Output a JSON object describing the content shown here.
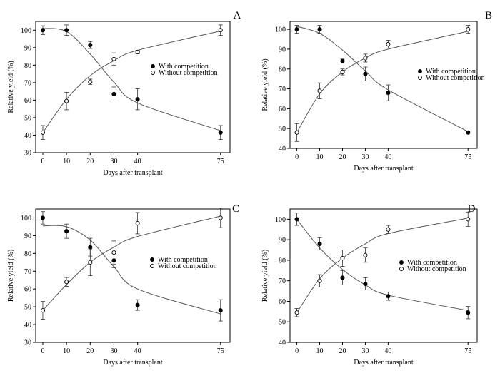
{
  "chart_data": [
    {
      "panel": "A",
      "type": "scatter",
      "xlabel": "Days after transplant",
      "ylabel": "Relative yield (%)",
      "xticks": [
        0,
        10,
        20,
        30,
        40,
        75
      ],
      "yticks": [
        30,
        40,
        50,
        60,
        70,
        80,
        90,
        100
      ],
      "xlim": [
        -3,
        79
      ],
      "ylim": [
        30,
        105
      ],
      "legend_position": "right",
      "series": [
        {
          "name": "With competition",
          "marker": "filled",
          "x": [
            0,
            10,
            20,
            30,
            40,
            75
          ],
          "y": [
            100,
            100,
            91.5,
            63.5,
            60.5,
            41.5
          ],
          "err": [
            2.5,
            3,
            2,
            4,
            6,
            4
          ],
          "fit_y": [
            101,
            99.2,
            86.3,
            70.3,
            58.4,
            42.6
          ]
        },
        {
          "name": "Without competition",
          "marker": "open",
          "x": [
            0,
            10,
            20,
            30,
            40,
            75
          ],
          "y": [
            41.5,
            59.5,
            70.5,
            83.5,
            87.5,
            100
          ],
          "err": [
            4,
            5,
            1.5,
            3.5,
            1,
            3
          ],
          "fit_y": [
            41.5,
            60.5,
            74,
            82.5,
            88.5,
            99.5
          ]
        }
      ]
    },
    {
      "panel": "B",
      "type": "scatter",
      "xlabel": "Days after transplant",
      "ylabel": "Relative yield (%)",
      "xticks": [
        0,
        10,
        20,
        30,
        40,
        75
      ],
      "yticks": [
        40,
        50,
        60,
        70,
        80,
        90,
        100
      ],
      "xlim": [
        -3,
        79
      ],
      "ylim": [
        40,
        104
      ],
      "legend_position": "right",
      "series": [
        {
          "name": "With competition",
          "marker": "filled",
          "x": [
            0,
            10,
            20,
            30,
            40,
            75
          ],
          "y": [
            100,
            100,
            84,
            77.5,
            68,
            48
          ],
          "err": [
            2,
            2,
            1,
            3.5,
            4,
            0.5
          ],
          "fit_y": [
            101.5,
            98,
            89.5,
            79,
            69.5,
            48.5
          ]
        },
        {
          "name": "Without competition",
          "marker": "open",
          "x": [
            0,
            10,
            20,
            30,
            40,
            75
          ],
          "y": [
            48,
            69,
            78.5,
            85.5,
            92.5,
            100
          ],
          "err": [
            4.5,
            4,
            1.5,
            2,
            2,
            2
          ],
          "fit_y": [
            48,
            67.5,
            78.5,
            85.5,
            90,
            99
          ]
        }
      ]
    },
    {
      "panel": "C",
      "type": "scatter",
      "xlabel": "Days after transplant",
      "ylabel": "Relative yield (%)",
      "xticks": [
        0,
        10,
        20,
        30,
        40,
        75
      ],
      "yticks": [
        30,
        40,
        50,
        60,
        70,
        80,
        90,
        100
      ],
      "xlim": [
        -3,
        79
      ],
      "ylim": [
        30,
        105
      ],
      "legend_position": "right",
      "series": [
        {
          "name": "With competition",
          "marker": "filled",
          "x": [
            0,
            10,
            20,
            30,
            40,
            75
          ],
          "y": [
            100,
            92.5,
            83.5,
            76,
            51,
            48
          ],
          "err": [
            3.5,
            4,
            5,
            4,
            3,
            6
          ],
          "fit_y": [
            95.5,
            95,
            87.5,
            72.5,
            60,
            46
          ]
        },
        {
          "name": "Without competition",
          "marker": "open",
          "x": [
            0,
            10,
            20,
            30,
            40,
            75
          ],
          "y": [
            48,
            64,
            75,
            80.5,
            97,
            100
          ],
          "err": [
            5,
            2.5,
            7.5,
            6.5,
            6,
            5.5
          ],
          "fit_y": [
            48,
            62.5,
            75,
            83.5,
            89.5,
            101
          ]
        }
      ]
    },
    {
      "panel": "D",
      "type": "scatter",
      "xlabel": "Days after transplant",
      "ylabel": "Relative yield (%)",
      "xticks": [
        0,
        10,
        20,
        30,
        40,
        75
      ],
      "yticks": [
        40,
        50,
        60,
        70,
        80,
        90,
        100
      ],
      "xlim": [
        -3,
        79
      ],
      "ylim": [
        40,
        105
      ],
      "legend_position": "right",
      "series": [
        {
          "name": "With competition",
          "marker": "filled",
          "x": [
            0,
            10,
            20,
            30,
            40,
            75
          ],
          "y": [
            100,
            88,
            71.5,
            68.5,
            62.5,
            54.5
          ],
          "err": [
            3,
            3,
            3.5,
            3,
            2,
            3
          ],
          "fit_y": [
            100,
            86,
            75.5,
            68,
            63,
            55.5
          ]
        },
        {
          "name": "Without competition",
          "marker": "open",
          "x": [
            0,
            10,
            20,
            30,
            40,
            75
          ],
          "y": [
            54.5,
            70,
            81,
            82.5,
            95,
            100
          ],
          "err": [
            2,
            3,
            4,
            3.5,
            2,
            3.5
          ],
          "fit_y": [
            54.5,
            71,
            81,
            88,
            93,
            100.5
          ]
        }
      ]
    }
  ]
}
